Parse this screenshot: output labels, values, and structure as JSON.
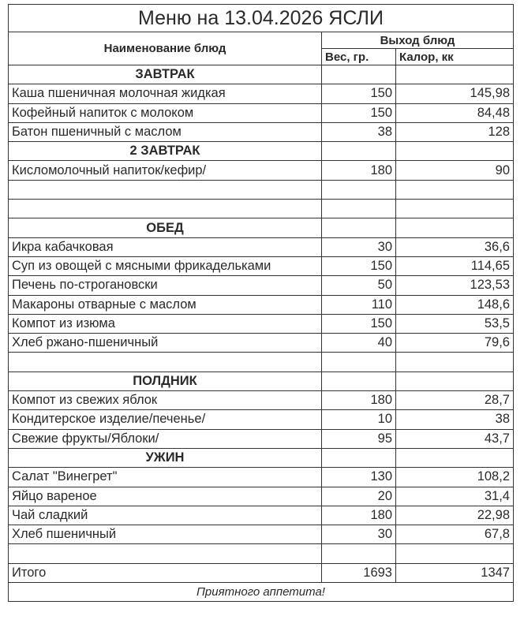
{
  "title": "Меню на 13.04.2026 ЯСЛИ",
  "header": {
    "name": "Наименование блюд",
    "output": "Выход блюд",
    "weight": "Вес, гр.",
    "calories": "Калор, кк"
  },
  "rows": [
    {
      "type": "section",
      "name": "ЗАВТРАК"
    },
    {
      "type": "item",
      "name": "Каша  пшеничная молочная жидкая",
      "weight": "150",
      "calories": "145,98"
    },
    {
      "type": "item",
      "name": "Кофейный напиток с молоком",
      "weight": "150",
      "calories": "84,48"
    },
    {
      "type": "item",
      "name": "Батон пшеничный с маслом",
      "weight": "38",
      "calories": "128"
    },
    {
      "type": "section",
      "name": "2 ЗАВТРАК"
    },
    {
      "type": "item",
      "name": "Кисломолочный напиток/кефир/",
      "weight": "180",
      "calories": "90"
    },
    {
      "type": "blank"
    },
    {
      "type": "blank"
    },
    {
      "type": "section",
      "name": "ОБЕД"
    },
    {
      "type": "item",
      "name": "Икра кабачковая",
      "weight": "30",
      "calories": "36,6"
    },
    {
      "type": "item",
      "name": "Суп из овощей с мясными фрикадельками",
      "weight": "150",
      "calories": "114,65"
    },
    {
      "type": "item",
      "name": "Печень по-строгановски",
      "weight": "50",
      "calories": "123,53"
    },
    {
      "type": "item",
      "name": "Макароны отварные с маслом",
      "weight": "110",
      "calories": "148,6"
    },
    {
      "type": "item",
      "name": "Компот из изюма",
      "weight": "150",
      "calories": "53,5"
    },
    {
      "type": "item",
      "name": "Хлеб ржано-пшеничный",
      "weight": "40",
      "calories": "79,6"
    },
    {
      "type": "blank"
    },
    {
      "type": "section",
      "name": "ПОЛДНИК"
    },
    {
      "type": "item",
      "name": "Компот из свежих яблок",
      "weight": "180",
      "calories": "28,7"
    },
    {
      "type": "item",
      "name": "Кондитерское изделие/печенье/",
      "weight": "10",
      "calories": "38"
    },
    {
      "type": "item",
      "name": "Свежие фрукты/Яблоки/",
      "weight": "95",
      "calories": "43,7"
    },
    {
      "type": "section",
      "name": "УЖИН"
    },
    {
      "type": "item",
      "name": "Салат \"Винегрет\"",
      "weight": "130",
      "calories": "108,2"
    },
    {
      "type": "item",
      "name": "Яйцо вареное",
      "weight": "20",
      "calories": "31,4"
    },
    {
      "type": "item",
      "name": "Чай сладкий",
      "weight": "180",
      "calories": "22,98"
    },
    {
      "type": "item",
      "name": "Хлеб пшеничный",
      "weight": "30",
      "calories": "67,8"
    },
    {
      "type": "blank"
    },
    {
      "type": "item",
      "name": "Итого",
      "weight": "1693",
      "calories": "1347"
    }
  ],
  "footer": "Приятного аппетита!"
}
